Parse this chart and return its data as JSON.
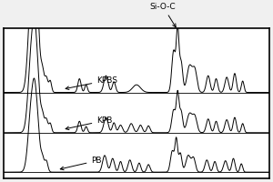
{
  "background_color": "#f0f0f0",
  "plot_bg_color": "#ffffff",
  "line_color": "#000000",
  "border_color": "#000000",
  "labels": [
    "KPBS",
    "KPB",
    "PB"
  ],
  "offsets": [
    1.05,
    0.52,
    0.0
  ],
  "annotation_sio_c": "Si-O-C",
  "xlim": [
    0.0,
    1.0
  ],
  "ylim": [
    -0.08,
    1.9
  ]
}
